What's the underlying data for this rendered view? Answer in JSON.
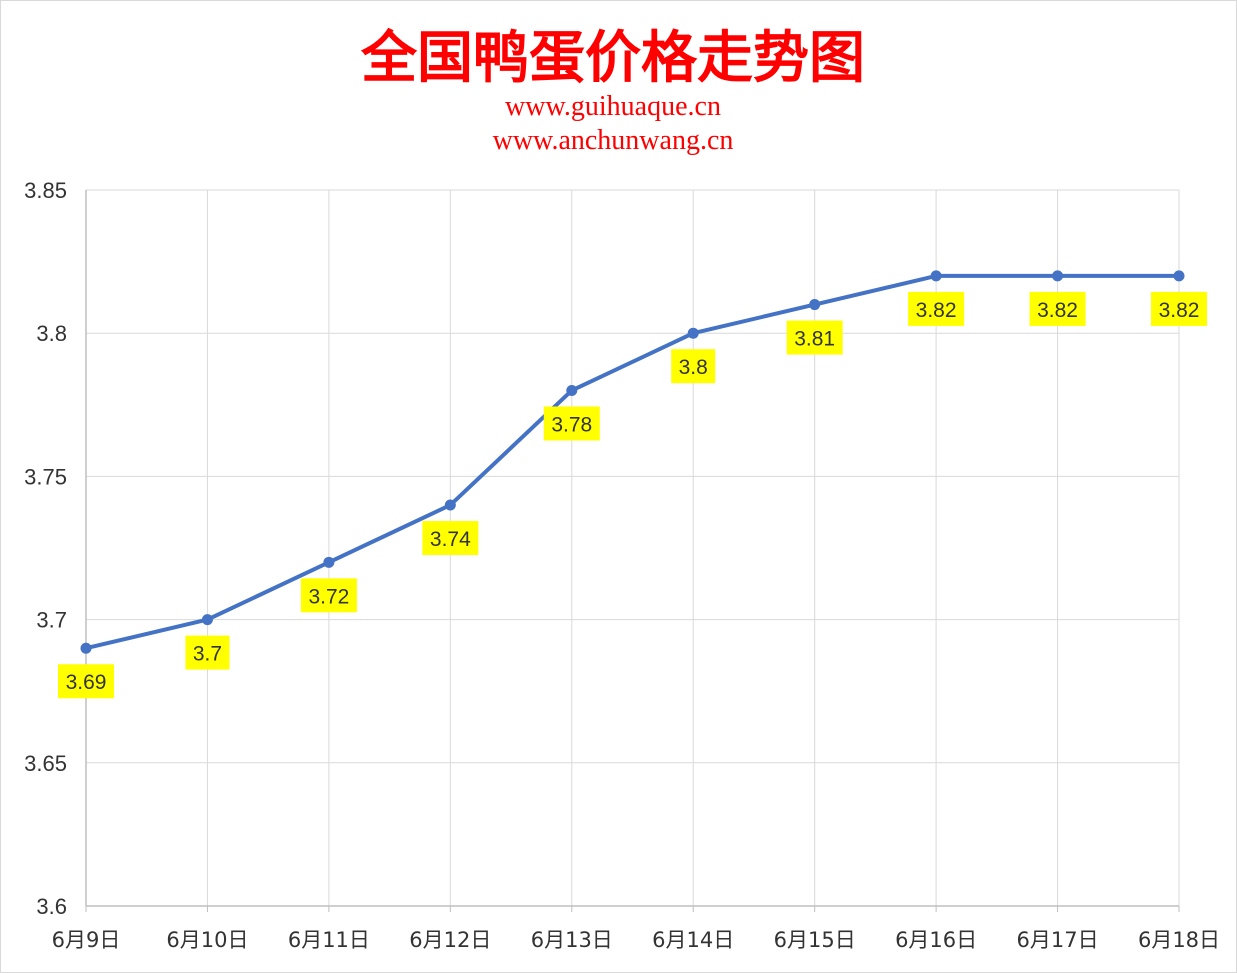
{
  "chart_data": {
    "type": "line",
    "title": "全国鸭蛋价格走势图",
    "subtitles": [
      "www.guihuaque.cn",
      "www.anchunwang.cn"
    ],
    "categories": [
      "6月9日",
      "6月10日",
      "6月11日",
      "6月12日",
      "6月13日",
      "6月14日",
      "6月15日",
      "6月16日",
      "6月17日",
      "6月18日"
    ],
    "series": [
      {
        "values": [
          3.69,
          3.7,
          3.72,
          3.74,
          3.78,
          3.8,
          3.81,
          3.82,
          3.82,
          3.82
        ],
        "data_labels": [
          "3.69",
          "3.7",
          "3.72",
          "3.74",
          "3.78",
          "3.8",
          "3.81",
          "3.82",
          "3.82",
          "3.82"
        ]
      }
    ],
    "ylim": [
      3.6,
      3.85
    ],
    "yticks": [
      3.85,
      3.8,
      3.75,
      3.7,
      3.65,
      3.6
    ],
    "ytick_labels": [
      "3.85",
      "3.8",
      "3.75",
      "3.7",
      "3.65",
      "3.6"
    ],
    "grid": true,
    "legend": "none",
    "colors": {
      "title": "#ff0000",
      "subtitle": "#ff0000",
      "line": "#4472c4",
      "marker": "#4472c4",
      "label_bg": "#ffff00",
      "grid": "#d9d9d9",
      "axis": "#bfbfbf",
      "text": "#333333"
    }
  }
}
